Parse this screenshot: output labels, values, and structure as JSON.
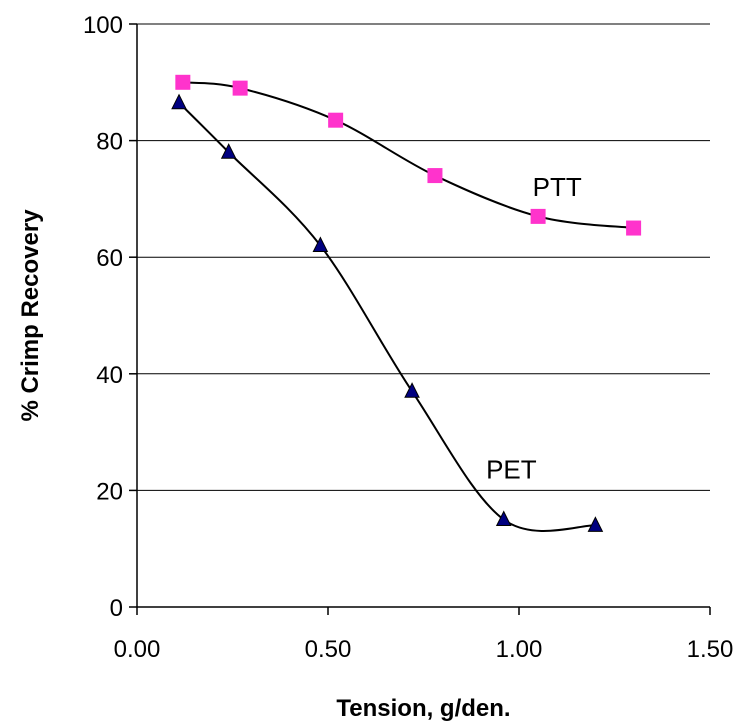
{
  "chart_data": {
    "type": "scatter",
    "xlabel": "Tension, g/den.",
    "ylabel": "% Crimp Recovery",
    "xlim": [
      0,
      1.5
    ],
    "ylim": [
      0,
      100
    ],
    "x_ticks": [
      "0.00",
      "0.50",
      "1.00",
      "1.50"
    ],
    "y_ticks": [
      "0",
      "20",
      "40",
      "60",
      "80",
      "100"
    ],
    "grid": "horizontal",
    "legend": "none",
    "series": [
      {
        "name": "PTT",
        "marker": "square",
        "color": "#ff33cc",
        "points": [
          {
            "x": 0.12,
            "y": 90
          },
          {
            "x": 0.27,
            "y": 89
          },
          {
            "x": 0.52,
            "y": 83.5
          },
          {
            "x": 0.78,
            "y": 74
          },
          {
            "x": 1.05,
            "y": 67
          },
          {
            "x": 1.3,
            "y": 65
          }
        ]
      },
      {
        "name": "PET",
        "marker": "triangle",
        "color": "#000080",
        "points": [
          {
            "x": 0.11,
            "y": 86.5
          },
          {
            "x": 0.24,
            "y": 78
          },
          {
            "x": 0.48,
            "y": 62
          },
          {
            "x": 0.72,
            "y": 37
          },
          {
            "x": 0.96,
            "y": 15
          },
          {
            "x": 1.2,
            "y": 14
          }
        ]
      }
    ]
  }
}
